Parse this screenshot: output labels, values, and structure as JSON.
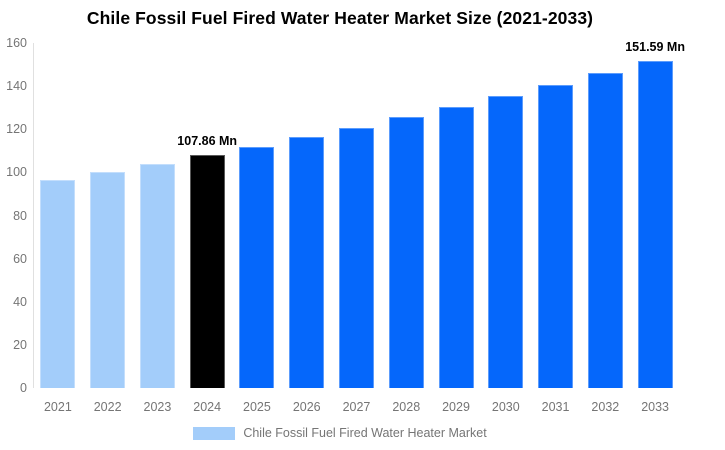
{
  "page": {
    "background_color": "#ffffff"
  },
  "chart_data": {
    "type": "bar",
    "title": "Chile Fossil Fuel Fired Water Heater Market Size (2021-2033)",
    "categories": [
      "2021",
      "2022",
      "2023",
      "2024",
      "2025",
      "2026",
      "2027",
      "2028",
      "2029",
      "2030",
      "2031",
      "2032",
      "2033"
    ],
    "values": [
      96.3,
      100.0,
      103.9,
      107.86,
      112.0,
      116.3,
      120.8,
      125.5,
      130.3,
      135.3,
      140.6,
      146.0,
      151.59
    ],
    "unit": "Mn",
    "bar_colors": [
      "#a3cdfa",
      "#a3cdfa",
      "#a3cdfa",
      "#000000",
      "#0567fb",
      "#0567fb",
      "#0567fb",
      "#0567fb",
      "#0567fb",
      "#0567fb",
      "#0567fb",
      "#0567fb",
      "#0567fb"
    ],
    "annotations": [
      {
        "index": 3,
        "text": "107.86 Mn"
      },
      {
        "index": 12,
        "text": "151.59 Mn"
      }
    ],
    "xlabel": "",
    "ylabel": "",
    "ylim": [
      0,
      160
    ],
    "yticks": [
      0,
      20,
      40,
      60,
      80,
      100,
      120,
      140,
      160
    ],
    "grid": false,
    "axis": {
      "line_color": "#e0e0e0",
      "tick_text_color": "#757575"
    },
    "legend": {
      "position": "bottom",
      "items": [
        {
          "label": "Chile Fossil Fuel Fired Water Heater Market",
          "color": "#a3cdfa"
        }
      ]
    }
  }
}
